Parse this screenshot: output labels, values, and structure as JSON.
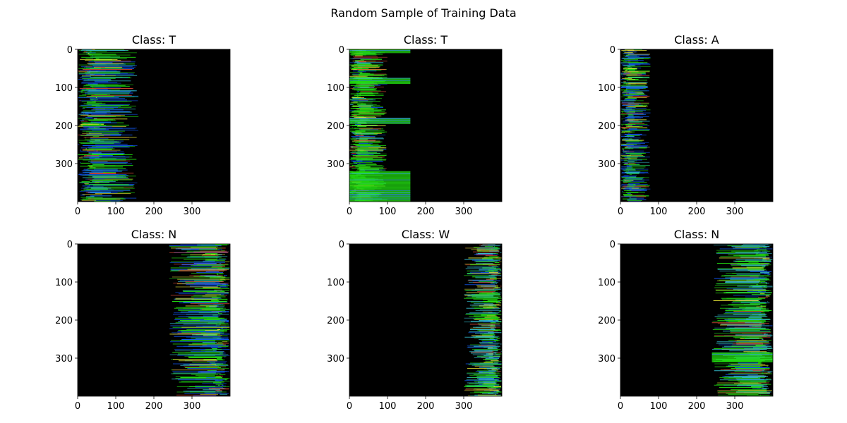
{
  "figure": {
    "suptitle": "Random Sample of Training Data",
    "background": "#ffffff",
    "image_background": "#000000",
    "palette": {
      "green": "#22dd11",
      "blue": "#1155ee",
      "cyan": "#33bbcc",
      "yellow": "#dddd33",
      "red": "#cc4433"
    }
  },
  "chart_data": [
    {
      "type": "heatmap",
      "title": "Class: T",
      "xlabel": "",
      "ylabel": "",
      "xlim": [
        0,
        400
      ],
      "ylim": [
        400,
        0
      ],
      "x_ticks": [
        0,
        100,
        200,
        300
      ],
      "y_ticks": [
        0,
        100,
        200,
        300
      ],
      "grid": false,
      "content": {
        "x_range": [
          0,
          160
        ],
        "side": "left",
        "color": "#1155ee"
      },
      "block_rows": []
    },
    {
      "type": "heatmap",
      "title": "Class: T",
      "xlabel": "",
      "ylabel": "",
      "xlim": [
        0,
        400
      ],
      "ylim": [
        400,
        0
      ],
      "x_ticks": [
        0,
        100,
        200,
        300
      ],
      "y_ticks": [
        0,
        100,
        200,
        300
      ],
      "grid": false,
      "content": {
        "x_range": [
          0,
          100
        ],
        "side": "left",
        "color": "#22dd11"
      },
      "block_rows": [
        [
          0,
          10,
          160
        ],
        [
          75,
          90,
          160
        ],
        [
          180,
          195,
          160
        ],
        [
          320,
          400,
          160
        ]
      ]
    },
    {
      "type": "heatmap",
      "title": "Class: A",
      "xlabel": "",
      "ylabel": "",
      "xlim": [
        0,
        400
      ],
      "ylim": [
        400,
        0
      ],
      "x_ticks": [
        0,
        100,
        200,
        300
      ],
      "y_ticks": [
        0,
        100,
        200,
        300
      ],
      "grid": false,
      "content": {
        "x_range": [
          0,
          80
        ],
        "side": "left",
        "color": "#1155ee"
      },
      "block_rows": []
    },
    {
      "type": "heatmap",
      "title": "Class: N",
      "xlabel": "",
      "ylabel": "",
      "xlim": [
        0,
        400
      ],
      "ylim": [
        400,
        0
      ],
      "x_ticks": [
        0,
        100,
        200,
        300
      ],
      "y_ticks": [
        0,
        100,
        200,
        300
      ],
      "grid": false,
      "content": {
        "x_range": [
          240,
          400
        ],
        "side": "right",
        "color": "#1155ee"
      },
      "block_rows": []
    },
    {
      "type": "heatmap",
      "title": "Class: W",
      "xlabel": "",
      "ylabel": "",
      "xlim": [
        0,
        400
      ],
      "ylim": [
        400,
        0
      ],
      "x_ticks": [
        0,
        100,
        200,
        300
      ],
      "y_ticks": [
        0,
        100,
        200,
        300
      ],
      "grid": false,
      "content": {
        "x_range": [
          300,
          400
        ],
        "side": "right",
        "color": "#33bbcc"
      },
      "block_rows": []
    },
    {
      "type": "heatmap",
      "title": "Class: N",
      "xlabel": "",
      "ylabel": "",
      "xlim": [
        0,
        400
      ],
      "ylim": [
        400,
        0
      ],
      "x_ticks": [
        0,
        100,
        200,
        300
      ],
      "y_ticks": [
        0,
        100,
        200,
        300
      ],
      "grid": false,
      "content": {
        "x_range": [
          240,
          400
        ],
        "side": "right",
        "color": "#33bbcc"
      },
      "block_rows": [
        [
          285,
          310,
          400
        ]
      ]
    }
  ]
}
